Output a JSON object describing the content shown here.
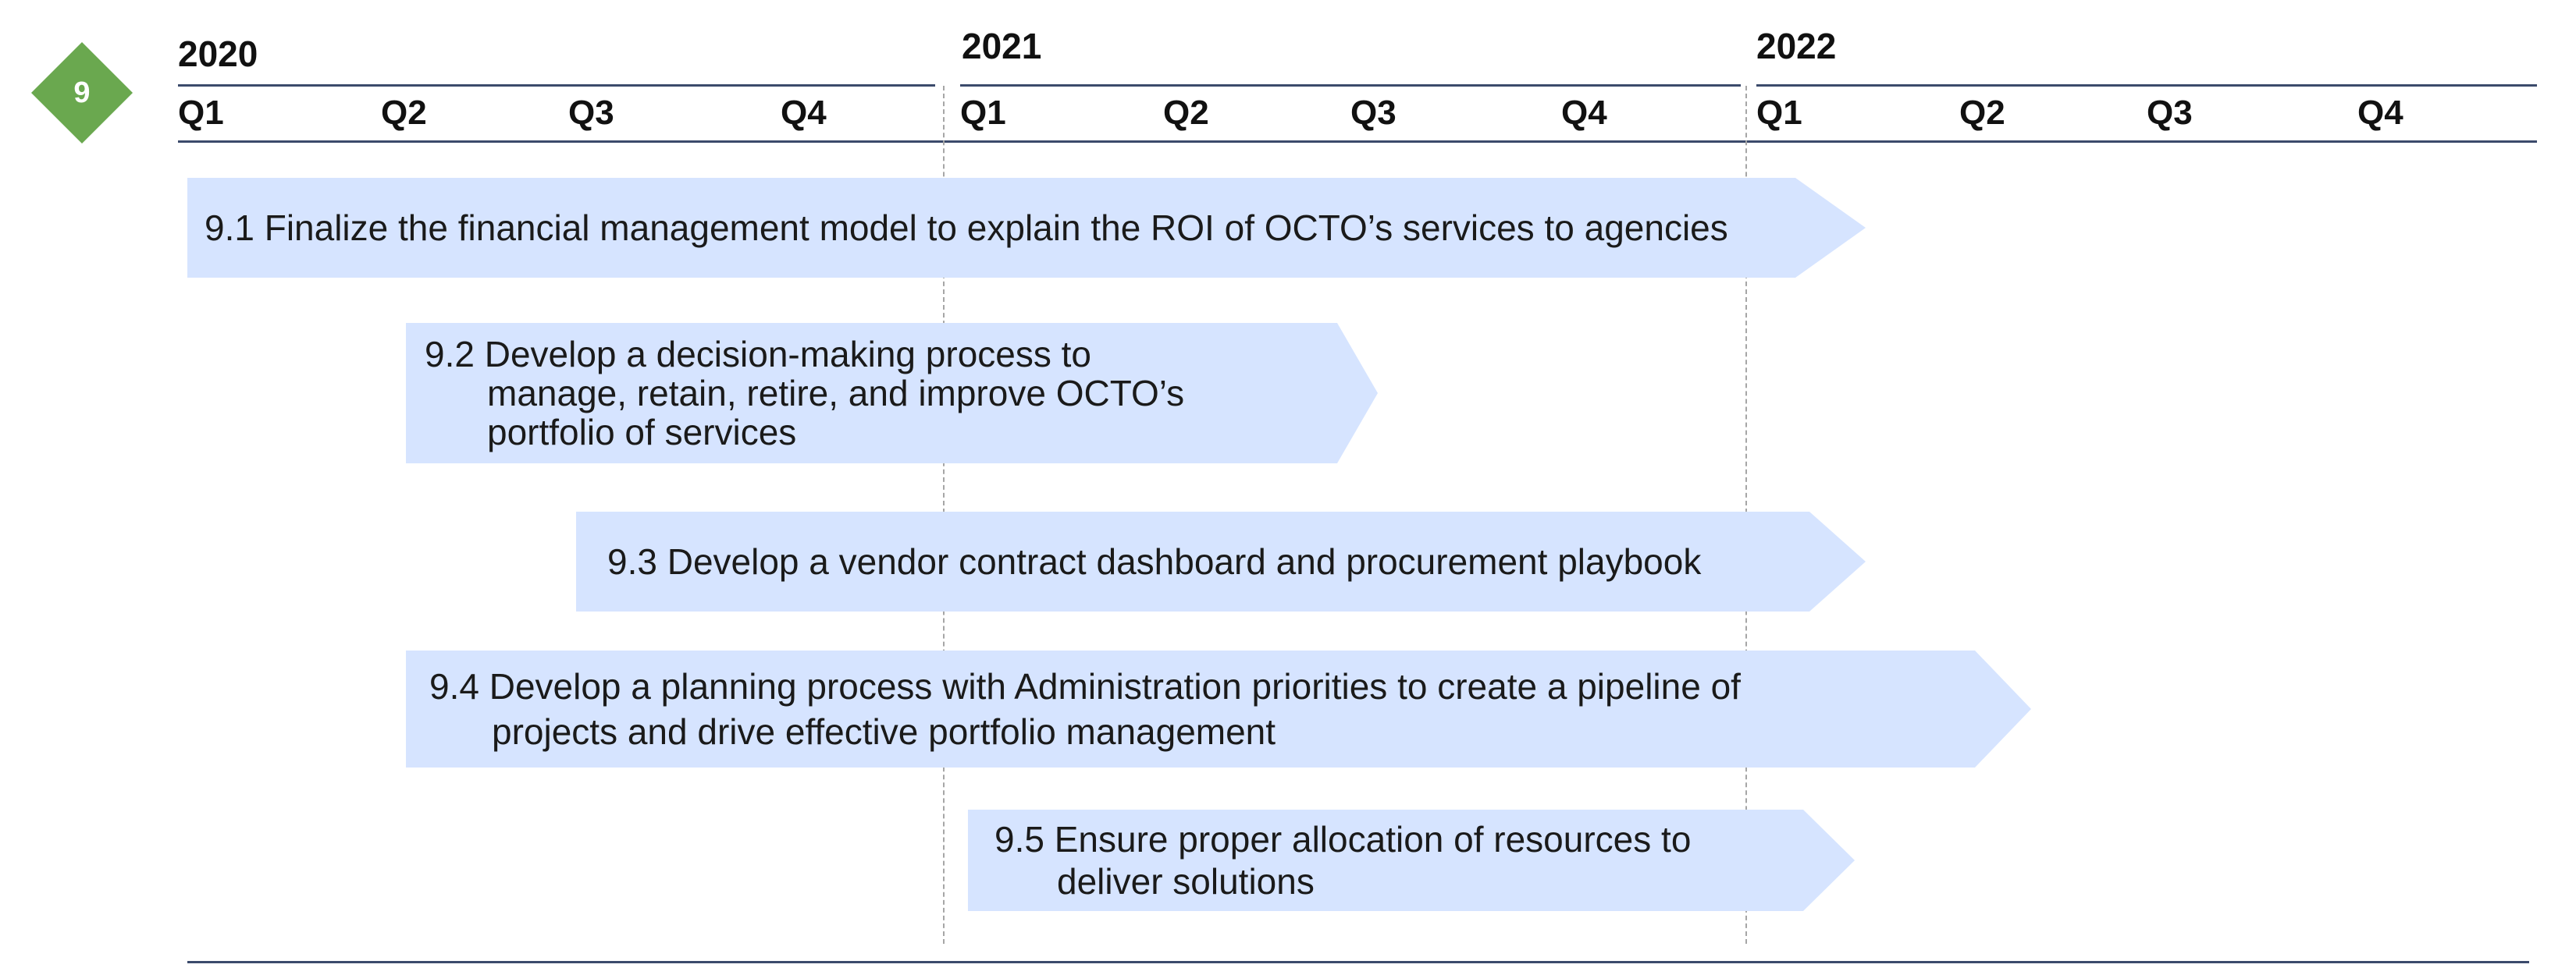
{
  "badge": {
    "number": "9",
    "color": "#6aa84f"
  },
  "timeline": {
    "years": [
      "2020",
      "2021",
      "2022"
    ],
    "quarters": [
      "Q1",
      "Q2",
      "Q3",
      "Q4",
      "Q1",
      "Q2",
      "Q3",
      "Q4",
      "Q1",
      "Q2",
      "Q3",
      "Q4"
    ]
  },
  "initiatives": [
    {
      "id": "9.1",
      "lines": [
        "9.1 Finalize the financial management model to explain the ROI of OCTO’s services to agencies"
      ]
    },
    {
      "id": "9.2",
      "lines": [
        "9.2 Develop a decision-making process to",
        "manage, retain, retire, and improve OCTO’s",
        "portfolio of services"
      ]
    },
    {
      "id": "9.3",
      "lines": [
        "9.3 Develop a vendor contract dashboard and procurement playbook"
      ]
    },
    {
      "id": "9.4",
      "lines": [
        "9.4 Develop a planning process with Administration priorities to create a pipeline of",
        "projects and drive effective portfolio management"
      ]
    },
    {
      "id": "9.5",
      "lines": [
        "9.5 Ensure proper allocation of resources to",
        "deliver solutions"
      ]
    }
  ],
  "colors": {
    "arrow_fill": "#d6e4ff",
    "rule": "#3b4a6b",
    "divider": "#a6a6a6"
  }
}
